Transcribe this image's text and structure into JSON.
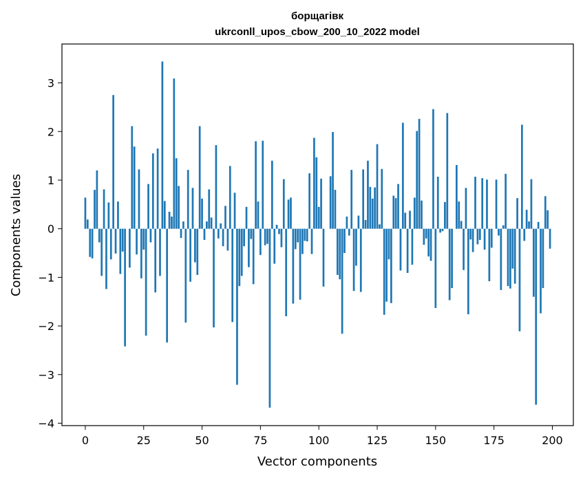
{
  "chart_data": {
    "type": "bar",
    "title_line1": "борщагівк",
    "title_line2": "ukrconll_upos_cbow_200_10_2022 model",
    "xlabel": "Vector components",
    "ylabel": "Components values",
    "xlim": [
      -10,
      209
    ],
    "ylim": [
      -4.05,
      3.8
    ],
    "xticks": [
      0,
      25,
      50,
      75,
      100,
      125,
      150,
      175,
      200
    ],
    "xtick_labels": [
      "0",
      "25",
      "50",
      "75",
      "100",
      "125",
      "150",
      "175",
      "200"
    ],
    "yticks": [
      3,
      2,
      1,
      0,
      -1,
      -2,
      -3,
      -4
    ],
    "ytick_labels": [
      "3",
      "2",
      "1",
      "0",
      "−1",
      "−2",
      "−3",
      "−4"
    ],
    "bar_color": "#1f77b4",
    "grid": false,
    "values": [
      0.64,
      0.19,
      -0.58,
      -0.61,
      0.8,
      1.2,
      -0.28,
      -0.97,
      0.81,
      -1.24,
      0.54,
      -0.63,
      2.75,
      -0.51,
      0.56,
      -0.93,
      -0.47,
      -2.42,
      0.0,
      -0.8,
      2.11,
      1.69,
      -0.53,
      1.22,
      -1.02,
      -0.43,
      -2.2,
      0.92,
      -0.28,
      1.55,
      -1.31,
      1.65,
      -0.97,
      3.44,
      0.57,
      -2.34,
      0.35,
      0.25,
      3.09,
      1.45,
      0.88,
      -0.19,
      0.15,
      -1.93,
      1.21,
      -1.09,
      0.84,
      -0.69,
      -0.95,
      2.11,
      0.62,
      -0.23,
      0.15,
      0.81,
      0.23,
      -2.03,
      1.72,
      -0.2,
      0.11,
      -0.36,
      0.47,
      -0.45,
      1.29,
      -1.92,
      0.74,
      -3.21,
      -1.18,
      -0.97,
      -0.36,
      0.45,
      -0.79,
      -0.21,
      -1.14,
      1.8,
      0.56,
      -0.54,
      1.81,
      -0.34,
      -0.31,
      -3.68,
      1.4,
      -0.72,
      0.08,
      -0.11,
      -0.38,
      1.02,
      -1.8,
      0.6,
      0.64,
      -1.54,
      -0.42,
      -0.28,
      -1.46,
      -0.52,
      -0.25,
      -0.26,
      1.14,
      -0.52,
      1.87,
      1.47,
      0.45,
      1.03,
      -1.19,
      0.0,
      0.0,
      1.08,
      1.99,
      0.8,
      -0.95,
      -1.04,
      -2.16,
      -0.5,
      0.25,
      -0.14,
      1.21,
      -1.28,
      -0.76,
      0.27,
      -1.3,
      1.22,
      0.18,
      1.4,
      0.86,
      0.62,
      0.85,
      1.74,
      0.09,
      1.23,
      -1.77,
      -1.5,
      -0.63,
      -1.53,
      0.68,
      0.63,
      0.92,
      -0.86,
      2.18,
      0.33,
      -0.91,
      0.37,
      -0.74,
      0.64,
      2.01,
      2.26,
      0.58,
      -0.33,
      -0.2,
      -0.57,
      -0.66,
      2.46,
      -1.63,
      1.07,
      -0.08,
      -0.05,
      0.55,
      2.38,
      -1.47,
      -1.22,
      0.0,
      1.31,
      0.56,
      0.16,
      -0.85,
      0.84,
      -1.76,
      -0.22,
      -0.48,
      1.07,
      -0.32,
      -0.23,
      1.04,
      -0.43,
      1.01,
      -1.08,
      -0.39,
      0.0,
      1.01,
      -0.14,
      -1.26,
      0.07,
      1.13,
      -1.18,
      -1.23,
      -0.82,
      -1.13,
      0.63,
      -2.11,
      2.14,
      -0.25,
      0.39,
      0.15,
      1.02,
      -1.4,
      -3.62,
      0.14,
      -1.74,
      -1.22,
      0.67,
      0.38,
      -0.41
    ]
  }
}
